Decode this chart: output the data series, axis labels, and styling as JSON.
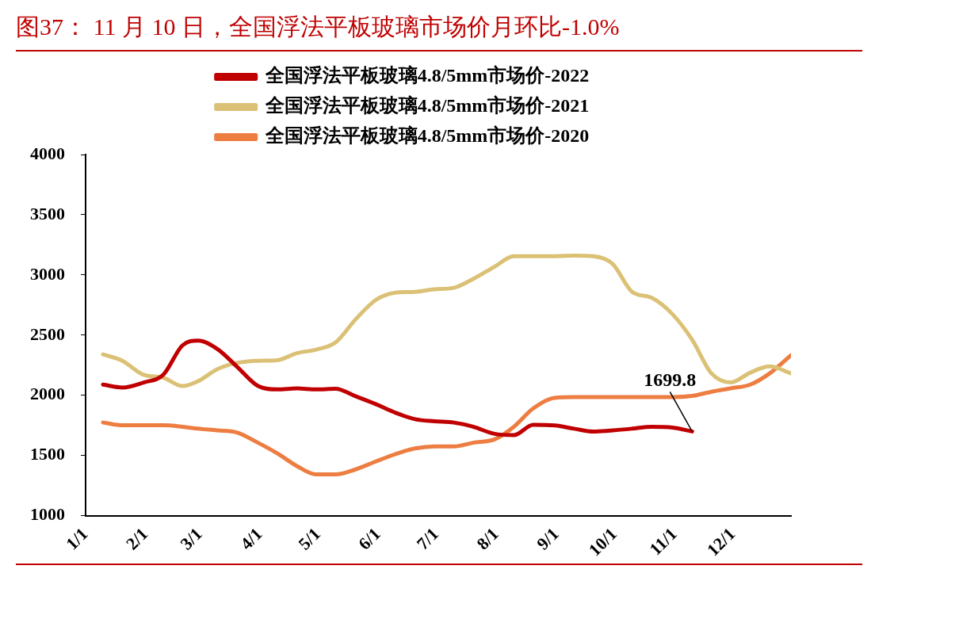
{
  "chart_data": {
    "type": "line",
    "title": "图37：  11 月 10 日，全国浮法平板玻璃市场价月环比-1.0%",
    "x": [
      "--01-10",
      "--01-20",
      "--01-31",
      "--02-10",
      "--02-20",
      "--02-28",
      "--03-10",
      "--03-20",
      "--03-31",
      "--04-10",
      "--04-20",
      "--04-30",
      "--05-10",
      "--05-20",
      "--05-31",
      "--06-10",
      "--06-20",
      "--06-30",
      "--07-10",
      "--07-20",
      "--07-31",
      "--08-10",
      "--08-20",
      "--08-31",
      "--09-10",
      "--09-20",
      "--09-30",
      "--10-10",
      "--10-20",
      "--10-31",
      "--11-10",
      "--11-20",
      "--11-30",
      "--12-10",
      "--12-20",
      "--12-31"
    ],
    "series": [
      {
        "name": "全国浮法平板玻璃4.8/5mm市场价-2022",
        "color": "#c00000",
        "values": [
          2089,
          2065,
          2107,
          2170,
          2415,
          2455,
          2385,
          2240,
          2077,
          2049,
          2058,
          2049,
          2054,
          1995,
          1925,
          1855,
          1802,
          1785,
          1774,
          1739,
          1680,
          1669,
          1755,
          1750,
          1723,
          1699,
          1709,
          1723,
          1739,
          1732,
          1699.8,
          null,
          null,
          null,
          null,
          null
        ]
      },
      {
        "name": "全国浮法平板玻璃4.8/5mm市场价-2021",
        "color": "#dbc176",
        "values": [
          2340,
          2287,
          2170,
          2147,
          2077,
          2117,
          2217,
          2269,
          2287,
          2292,
          2350,
          2380,
          2439,
          2625,
          2795,
          2853,
          2860,
          2881,
          2893,
          2967,
          3068,
          3156,
          3156,
          3156,
          3161,
          3156,
          3091,
          2860,
          2811,
          2671,
          2462,
          2182,
          2107,
          2189,
          2240,
          2182
        ]
      },
      {
        "name": "全国浮法平板玻璃4.8/5mm市场价-2020",
        "color": "#ed7d41",
        "values": [
          1774,
          1751,
          1751,
          1751,
          1739,
          1723,
          1709,
          1692,
          1606,
          1517,
          1413,
          1343,
          1343,
          1383,
          1452,
          1513,
          1559,
          1576,
          1576,
          1606,
          1634,
          1739,
          1891,
          1979,
          1985,
          1985,
          1985,
          1985,
          1985,
          1985,
          1995,
          2030,
          2058,
          2089,
          2182,
          2333
        ]
      }
    ],
    "xlim": [
      "--01-01",
      "--12-31"
    ],
    "xticks": [
      {
        "value": "--01-01",
        "label": "1/1"
      },
      {
        "value": "--02-01",
        "label": "2/1"
      },
      {
        "value": "--03-01",
        "label": "3/1"
      },
      {
        "value": "--04-01",
        "label": "4/1"
      },
      {
        "value": "--05-01",
        "label": "5/1"
      },
      {
        "value": "--06-01",
        "label": "6/1"
      },
      {
        "value": "--07-01",
        "label": "7/1"
      },
      {
        "value": "--08-01",
        "label": "8/1"
      },
      {
        "value": "--09-01",
        "label": "9/1"
      },
      {
        "value": "--10-01",
        "label": "10/1"
      },
      {
        "value": "--11-01",
        "label": "11/1"
      },
      {
        "value": "--12-01",
        "label": "12/1"
      }
    ],
    "ylim": [
      1000,
      4000
    ],
    "yticks": [
      1000,
      1500,
      2000,
      2500,
      3000,
      3500,
      4000
    ],
    "legend": "top",
    "annotations": [
      {
        "text": "1699.8",
        "x": "--11-10",
        "y": 1699.8
      }
    ]
  }
}
